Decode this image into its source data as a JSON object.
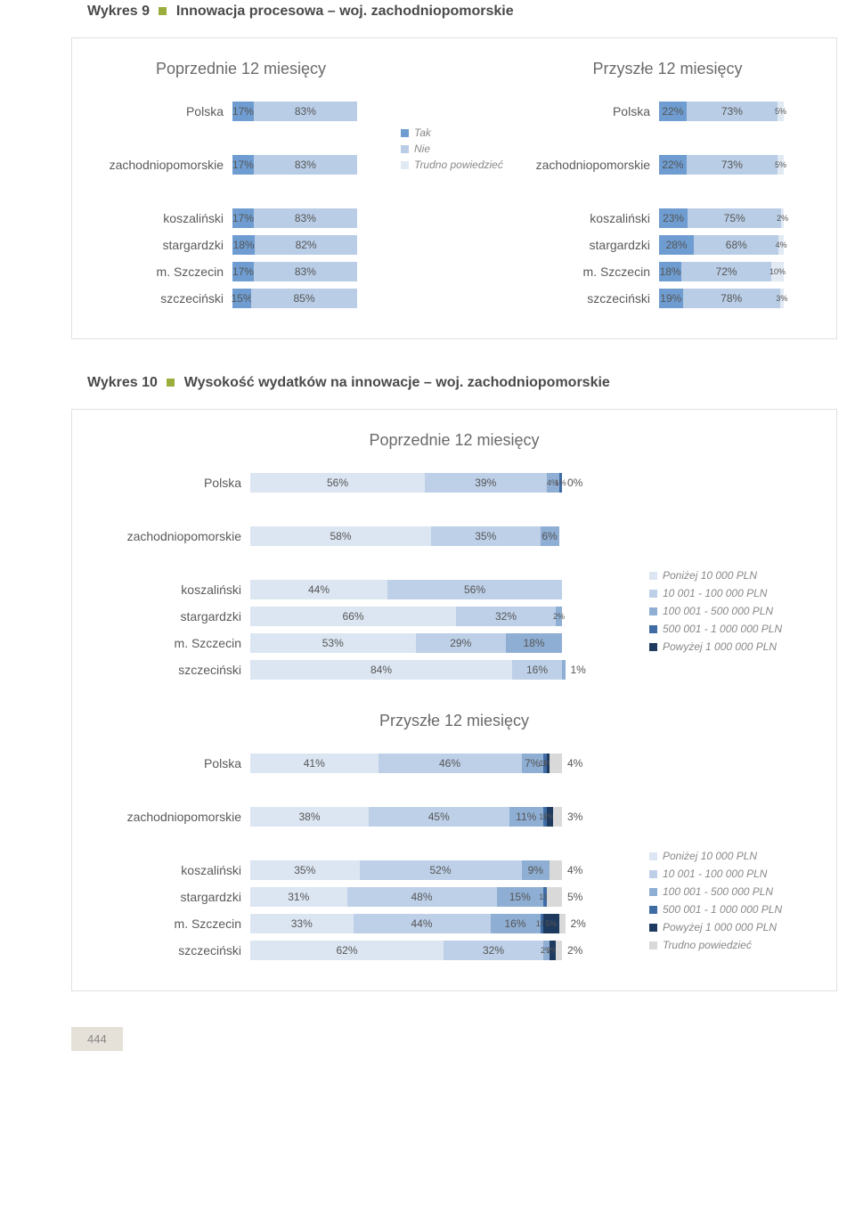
{
  "colors": {
    "tak": "#6f9dd1",
    "nie": "#b9cde6",
    "trudno": "#e1e9f3",
    "c1": "#dce6f2",
    "c2": "#bdd0e8",
    "c3": "#8faed3",
    "c4": "#3f6ca5",
    "c5": "#1f3a5f",
    "cgrey": "#d9d9d9",
    "accent": "#9aad3d"
  },
  "chart9": {
    "titlePrefix": "Wykres 9",
    "title": "Innowacja procesowa – woj. zachodniopomorskie",
    "leftHead": "Poprzednie 12 miesięcy",
    "rightHead": "Przyszłe 12 miesięcy",
    "legend": [
      "Tak",
      "Nie",
      "Trudno powiedzieć"
    ],
    "left": [
      {
        "label": "Polska",
        "segs": [
          {
            "v": 17,
            "c": "tak"
          },
          {
            "v": 83,
            "c": "nie"
          }
        ]
      },
      null,
      {
        "label": "zachodniopomorskie",
        "segs": [
          {
            "v": 17,
            "c": "tak"
          },
          {
            "v": 83,
            "c": "nie"
          }
        ]
      },
      null,
      {
        "label": "koszaliński",
        "segs": [
          {
            "v": 17,
            "c": "tak"
          },
          {
            "v": 83,
            "c": "nie"
          }
        ]
      },
      {
        "label": "stargardzki",
        "segs": [
          {
            "v": 18,
            "c": "tak"
          },
          {
            "v": 82,
            "c": "nie"
          }
        ]
      },
      {
        "label": "m. Szczecin",
        "segs": [
          {
            "v": 17,
            "c": "tak"
          },
          {
            "v": 83,
            "c": "nie"
          }
        ]
      },
      {
        "label": "szczeciński",
        "segs": [
          {
            "v": 15,
            "c": "tak"
          },
          {
            "v": 85,
            "c": "nie"
          }
        ]
      }
    ],
    "right": [
      {
        "label": "Polska",
        "segs": [
          {
            "v": 22,
            "c": "tak"
          },
          {
            "v": 73,
            "c": "nie"
          },
          {
            "v": 5,
            "c": "trudno"
          }
        ]
      },
      null,
      {
        "label": "zachodniopomorskie",
        "segs": [
          {
            "v": 22,
            "c": "tak"
          },
          {
            "v": 73,
            "c": "nie"
          },
          {
            "v": 5,
            "c": "trudno"
          }
        ]
      },
      null,
      {
        "label": "koszaliński",
        "segs": [
          {
            "v": 23,
            "c": "tak"
          },
          {
            "v": 75,
            "c": "nie"
          },
          {
            "v": 2,
            "c": "trudno"
          }
        ]
      },
      {
        "label": "stargardzki",
        "segs": [
          {
            "v": 28,
            "c": "tak"
          },
          {
            "v": 68,
            "c": "nie"
          },
          {
            "v": 4,
            "c": "trudno"
          }
        ]
      },
      {
        "label": "m. Szczecin",
        "segs": [
          {
            "v": 18,
            "c": "tak"
          },
          {
            "v": 72,
            "c": "nie"
          },
          {
            "v": 10,
            "c": "trudno"
          }
        ]
      },
      {
        "label": "szczeciński",
        "segs": [
          {
            "v": 19,
            "c": "tak"
          },
          {
            "v": 78,
            "c": "nie"
          },
          {
            "v": 3,
            "c": "trudno"
          }
        ]
      }
    ],
    "barScale": 1.4
  },
  "chart10": {
    "titlePrefix": "Wykres 10",
    "title": "Wysokość wydatków na innowacje – woj. zachodniopomorskie",
    "topHead": "Poprzednie 12 miesięcy",
    "botHead": "Przyszłe 12 miesięcy",
    "legend": [
      "Poniżej 10 000 PLN",
      "10 001 - 100 000 PLN",
      "100 001 -  500 000 PLN",
      "500 001 -  1 000 000 PLN",
      "Powyżej 1 000 000 PLN"
    ],
    "legend2extra": "Trudno powiedzieć",
    "barScale": 3.5,
    "top": [
      {
        "label": "Polska",
        "segs": [
          {
            "v": 56,
            "c": "c1"
          },
          {
            "v": 39,
            "c": "c2"
          },
          {
            "v": 4,
            "c": "c3"
          },
          {
            "v": 1,
            "c": "c4"
          },
          {
            "v": 0,
            "c": "c5",
            "out": true
          }
        ]
      },
      null,
      {
        "label": "zachodniopomorskie",
        "segs": [
          {
            "v": 58,
            "c": "c1"
          },
          {
            "v": 35,
            "c": "c2"
          },
          {
            "v": 6,
            "c": "c3"
          }
        ]
      },
      null,
      {
        "label": "koszaliński",
        "segs": [
          {
            "v": 44,
            "c": "c1"
          },
          {
            "v": 56,
            "c": "c2"
          }
        ]
      },
      {
        "label": "stargardzki",
        "segs": [
          {
            "v": 66,
            "c": "c1"
          },
          {
            "v": 32,
            "c": "c2"
          },
          {
            "v": 2,
            "c": "c3"
          }
        ]
      },
      {
        "label": "m. Szczecin",
        "segs": [
          {
            "v": 53,
            "c": "c1"
          },
          {
            "v": 29,
            "c": "c2"
          },
          {
            "v": 18,
            "c": "c3"
          }
        ]
      },
      {
        "label": "szczeciński",
        "segs": [
          {
            "v": 84,
            "c": "c1"
          },
          {
            "v": 16,
            "c": "c2"
          },
          {
            "v": 1,
            "c": "c3",
            "out": true
          }
        ]
      }
    ],
    "bot": [
      {
        "label": "Polska",
        "segs": [
          {
            "v": 41,
            "c": "c1"
          },
          {
            "v": 46,
            "c": "c2"
          },
          {
            "v": 7,
            "c": "c3"
          },
          {
            "v": 1,
            "c": "c4"
          },
          {
            "v": 1,
            "c": "c5"
          },
          {
            "v": 4,
            "c": "cgrey",
            "out": true
          }
        ]
      },
      null,
      {
        "label": "zachodniopomorskie",
        "segs": [
          {
            "v": 38,
            "c": "c1"
          },
          {
            "v": 45,
            "c": "c2"
          },
          {
            "v": 11,
            "c": "c3"
          },
          {
            "v": 1,
            "c": "c4"
          },
          {
            "v": 2,
            "c": "c5"
          },
          {
            "v": 3,
            "c": "cgrey",
            "out": true
          }
        ]
      },
      null,
      {
        "label": "koszaliński",
        "segs": [
          {
            "v": 35,
            "c": "c1"
          },
          {
            "v": 52,
            "c": "c2"
          },
          {
            "v": 9,
            "c": "c3"
          },
          {
            "v": 4,
            "c": "cgrey",
            "out": true
          }
        ]
      },
      {
        "label": "stargardzki",
        "segs": [
          {
            "v": 31,
            "c": "c1"
          },
          {
            "v": 48,
            "c": "c2"
          },
          {
            "v": 15,
            "c": "c3"
          },
          {
            "v": 1,
            "c": "c4"
          },
          {
            "v": 5,
            "c": "cgrey",
            "out": true
          }
        ]
      },
      {
        "label": "m. Szczecin",
        "segs": [
          {
            "v": 33,
            "c": "c1"
          },
          {
            "v": 44,
            "c": "c2"
          },
          {
            "v": 16,
            "c": "c3"
          },
          {
            "v": 1,
            "c": "c4"
          },
          {
            "v": 5,
            "c": "c5"
          },
          {
            "v": 2,
            "c": "cgrey",
            "out": true
          }
        ]
      },
      {
        "label": "szczeciński",
        "segs": [
          {
            "v": 62,
            "c": "c1"
          },
          {
            "v": 32,
            "c": "c2"
          },
          {
            "v": 2,
            "c": "c3"
          },
          {
            "v": 2,
            "c": "c5"
          },
          {
            "v": 2,
            "c": "cgrey",
            "out": true
          }
        ]
      }
    ]
  },
  "pageNumber": "444"
}
